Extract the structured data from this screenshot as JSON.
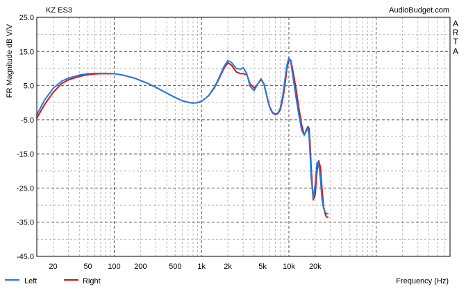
{
  "chart_data": {
    "type": "line",
    "title": "KZ ES3",
    "watermark": "AudioBudget.com",
    "side_label": [
      "A",
      "R",
      "T",
      "A"
    ],
    "xlabel": "Frequency (Hz)",
    "ylabel": "FR Magnitude dB V/V",
    "x_scale": "log",
    "xlim": [
      13,
      700000
    ],
    "ylim": [
      -45,
      25
    ],
    "x_ticks": [
      {
        "value": 20,
        "label": "20"
      },
      {
        "value": 50,
        "label": "50"
      },
      {
        "value": 100,
        "label": "100"
      },
      {
        "value": 200,
        "label": "200"
      },
      {
        "value": 500,
        "label": "500"
      },
      {
        "value": 1000,
        "label": "1k"
      },
      {
        "value": 2000,
        "label": "2k"
      },
      {
        "value": 5000,
        "label": "5k"
      },
      {
        "value": 10000,
        "label": "10k"
      },
      {
        "value": 20000,
        "label": "20k"
      }
    ],
    "y_ticks": [
      {
        "value": 25,
        "label": "25.0"
      },
      {
        "value": 15,
        "label": "15.0"
      },
      {
        "value": 5,
        "label": "5.0"
      },
      {
        "value": -5,
        "label": "-5.0"
      },
      {
        "value": -15,
        "label": "-15.0"
      },
      {
        "value": -25,
        "label": "-25.0"
      },
      {
        "value": -35,
        "label": "-35.0"
      },
      {
        "value": -45,
        "label": "-45.0"
      }
    ],
    "grid": true,
    "legend_position": "bottom-left",
    "series": [
      {
        "name": "Left",
        "color": "#1f7fe0",
        "x": [
          13,
          16,
          20,
          25,
          30,
          40,
          50,
          60,
          70,
          80,
          100,
          130,
          170,
          200,
          250,
          300,
          400,
          500,
          600,
          700,
          800,
          900,
          1000,
          1200,
          1400,
          1600,
          1800,
          2000,
          2200,
          2500,
          2800,
          3000,
          3300,
          3600,
          4000,
          4400,
          4800,
          5200,
          5600,
          6000,
          6500,
          7000,
          7500,
          8000,
          8500,
          9000,
          9500,
          10000,
          10500,
          11000,
          12000,
          13000,
          14000,
          15000,
          16000,
          16500,
          17000,
          17500,
          18000,
          19000,
          20000,
          21000,
          22000,
          23000,
          24000,
          25000,
          26000,
          27000,
          28000
        ],
        "y": [
          -3.5,
          0.8,
          4.2,
          6.3,
          7.2,
          8.1,
          8.5,
          8.6,
          8.6,
          8.6,
          8.5,
          8.0,
          7.2,
          6.5,
          5.5,
          4.5,
          2.8,
          1.5,
          0.6,
          0.1,
          -0.1,
          0.0,
          0.4,
          2.0,
          4.5,
          7.5,
          10.5,
          12.3,
          11.8,
          10.0,
          9.8,
          10.3,
          8.5,
          4.8,
          3.5,
          5.5,
          7.0,
          5.5,
          2.0,
          -1.0,
          -2.8,
          -3.3,
          -3.0,
          -1.5,
          2.0,
          6.5,
          11.0,
          13.2,
          12.0,
          8.5,
          2.0,
          -3.5,
          -8.0,
          -9.5,
          -7.5,
          -7.5,
          -9.5,
          -15.0,
          -22.0,
          -28.0,
          -24.0,
          -17.5,
          -17.5,
          -22.5,
          -28.5,
          -31.0,
          -32.0,
          -32.5,
          -32.5
        ]
      },
      {
        "name": "Right",
        "color": "#d41515",
        "x": [
          13,
          16,
          20,
          25,
          30,
          40,
          50,
          60,
          70,
          80,
          100,
          130,
          170,
          200,
          250,
          300,
          400,
          500,
          600,
          700,
          800,
          900,
          1000,
          1200,
          1400,
          1600,
          1800,
          2000,
          2200,
          2500,
          2800,
          3000,
          3300,
          3600,
          4000,
          4400,
          4800,
          5200,
          5600,
          6000,
          6500,
          7000,
          7500,
          8000,
          8500,
          9000,
          9500,
          10000,
          10500,
          11000,
          12000,
          13000,
          14000,
          15000,
          16000,
          16500,
          17000,
          17500,
          18000,
          19000,
          20000,
          21000,
          22000,
          23000,
          24000,
          25000,
          26000,
          27000,
          28000
        ],
        "y": [
          -4.5,
          -0.5,
          3.0,
          5.6,
          6.7,
          7.7,
          8.2,
          8.4,
          8.5,
          8.5,
          8.5,
          8.0,
          7.2,
          6.5,
          5.5,
          4.5,
          2.8,
          1.5,
          0.6,
          0.1,
          -0.1,
          0.0,
          0.4,
          2.0,
          4.3,
          7.2,
          10.0,
          11.7,
          11.0,
          9.0,
          8.5,
          8.5,
          8.2,
          5.5,
          4.3,
          5.5,
          6.8,
          5.3,
          1.8,
          -1.2,
          -3.0,
          -3.5,
          -3.2,
          -2.0,
          1.0,
          5.0,
          10.0,
          12.5,
          12.5,
          10.0,
          4.5,
          -1.5,
          -6.5,
          -9.5,
          -8.0,
          -7.0,
          -7.5,
          -12.0,
          -19.0,
          -28.5,
          -27.0,
          -20.0,
          -17.0,
          -19.0,
          -25.5,
          -30.5,
          -32.5,
          -33.5,
          -33.5
        ]
      }
    ]
  }
}
